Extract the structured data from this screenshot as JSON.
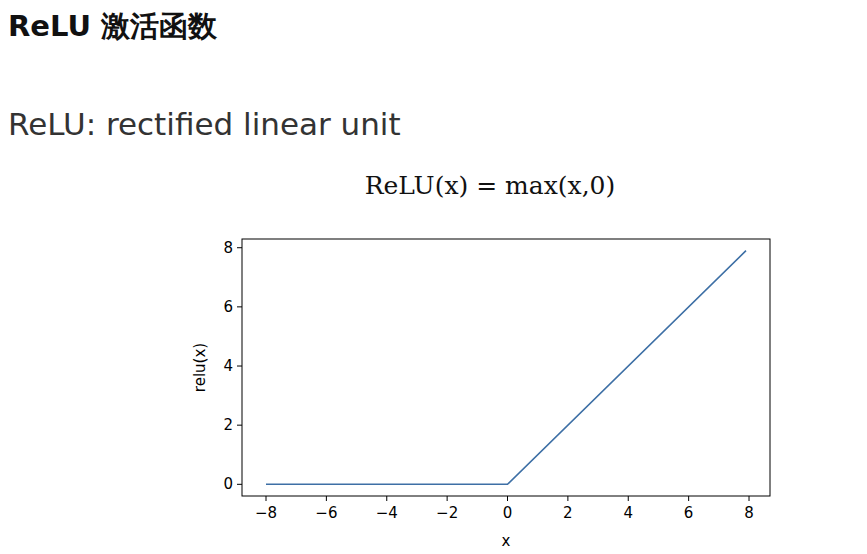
{
  "chart_data": {
    "type": "line",
    "title": "ReLU 激活函数",
    "subtitle": "ReLU: rectified linear unit",
    "annotations": [
      "ReLU(x) = max(x,0)"
    ],
    "x_label": "x",
    "y_label": "relu(x)",
    "x": [
      -8,
      0,
      7.9
    ],
    "series": [
      {
        "name": "relu(x)",
        "color": "#3d6fa5",
        "values": [
          0,
          0,
          7.9
        ]
      }
    ],
    "xlim": [
      -8.795,
      8.695
    ],
    "ylim": [
      -0.395,
      8.295
    ],
    "xticks": [
      {
        "value": -8,
        "label": "−8"
      },
      {
        "value": -6,
        "label": "−6"
      },
      {
        "value": -4,
        "label": "−4"
      },
      {
        "value": -2,
        "label": "−2"
      },
      0,
      2,
      4,
      6,
      8
    ],
    "yticks": [
      0,
      2,
      4,
      6,
      8
    ],
    "grid": false
  }
}
